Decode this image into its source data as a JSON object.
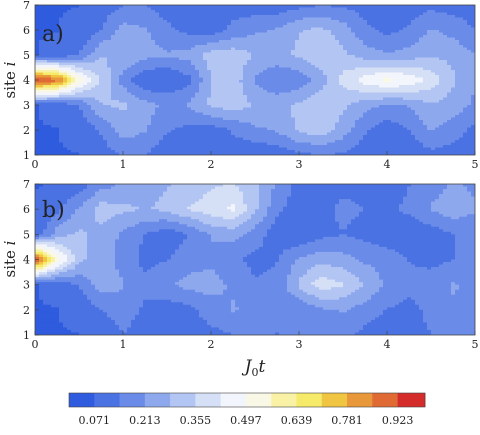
{
  "chart_data": [
    {
      "type": "heatmap",
      "panel_label": "a)",
      "xlim": [
        0,
        5
      ],
      "ylim": [
        1,
        7
      ],
      "x_ticks": [
        "0",
        "1",
        "2",
        "3",
        "4",
        "5"
      ],
      "y_ticks": [
        "1",
        "2",
        "3",
        "4",
        "5",
        "6",
        "7"
      ],
      "ylabel": "site i",
      "xlabel": "",
      "x": [
        0,
        0.25,
        0.5,
        0.75,
        1,
        1.25,
        1.5,
        1.75,
        2,
        2.25,
        2.5,
        2.75,
        3,
        3.25,
        3.5,
        3.75,
        4,
        4.25,
        4.5,
        4.75,
        5
      ],
      "y": [
        1,
        2,
        3,
        4,
        5,
        6,
        7
      ],
      "z": [
        [
          0.07,
          0.07,
          0.07,
          0.1,
          0.15,
          0.14,
          0.09,
          0.08,
          0.09,
          0.1,
          0.08,
          0.09,
          0.12,
          0.14,
          0.13,
          0.1,
          0.08,
          0.09,
          0.12,
          0.11,
          0.09
        ],
        [
          0.07,
          0.07,
          0.08,
          0.15,
          0.25,
          0.22,
          0.15,
          0.12,
          0.1,
          0.15,
          0.2,
          0.22,
          0.3,
          0.33,
          0.25,
          0.15,
          0.1,
          0.14,
          0.22,
          0.18,
          0.12
        ],
        [
          0.07,
          0.08,
          0.14,
          0.28,
          0.3,
          0.24,
          0.2,
          0.22,
          0.3,
          0.32,
          0.28,
          0.26,
          0.3,
          0.34,
          0.3,
          0.24,
          0.2,
          0.22,
          0.28,
          0.25,
          0.2
        ],
        [
          0.95,
          0.88,
          0.55,
          0.35,
          0.18,
          0.07,
          0.07,
          0.12,
          0.28,
          0.33,
          0.2,
          0.15,
          0.16,
          0.25,
          0.38,
          0.46,
          0.52,
          0.48,
          0.4,
          0.3,
          0.22
        ],
        [
          0.07,
          0.08,
          0.14,
          0.28,
          0.28,
          0.24,
          0.22,
          0.24,
          0.32,
          0.33,
          0.28,
          0.26,
          0.3,
          0.34,
          0.3,
          0.25,
          0.22,
          0.24,
          0.28,
          0.26,
          0.22
        ],
        [
          0.07,
          0.07,
          0.08,
          0.14,
          0.24,
          0.22,
          0.16,
          0.12,
          0.1,
          0.16,
          0.2,
          0.22,
          0.28,
          0.3,
          0.25,
          0.16,
          0.12,
          0.15,
          0.22,
          0.19,
          0.14
        ],
        [
          0.07,
          0.07,
          0.07,
          0.1,
          0.14,
          0.14,
          0.1,
          0.09,
          0.1,
          0.11,
          0.1,
          0.1,
          0.12,
          0.14,
          0.13,
          0.11,
          0.1,
          0.1,
          0.12,
          0.11,
          0.1
        ]
      ]
    },
    {
      "type": "heatmap",
      "panel_label": "b)",
      "xlim": [
        0,
        5
      ],
      "ylim": [
        1,
        7
      ],
      "x_ticks": [
        "0",
        "1",
        "2",
        "3",
        "4",
        "5"
      ],
      "y_ticks": [
        "1",
        "2",
        "3",
        "4",
        "5",
        "6",
        "7"
      ],
      "ylabel": "site i",
      "xlabel": "J0t",
      "x": [
        0,
        0.25,
        0.5,
        0.75,
        1,
        1.25,
        1.5,
        1.75,
        2,
        2.25,
        2.5,
        2.75,
        3,
        3.25,
        3.5,
        3.75,
        4,
        4.25,
        4.5,
        4.75,
        5
      ],
      "y": [
        1,
        2,
        3,
        4,
        5,
        6,
        7
      ],
      "z": [
        [
          0.07,
          0.07,
          0.07,
          0.09,
          0.14,
          0.1,
          0.08,
          0.1,
          0.12,
          0.14,
          0.15,
          0.14,
          0.15,
          0.18,
          0.16,
          0.12,
          0.1,
          0.12,
          0.14,
          0.15,
          0.14
        ],
        [
          0.07,
          0.07,
          0.08,
          0.14,
          0.18,
          0.13,
          0.1,
          0.12,
          0.18,
          0.22,
          0.2,
          0.16,
          0.15,
          0.2,
          0.22,
          0.18,
          0.14,
          0.12,
          0.16,
          0.2,
          0.18
        ],
        [
          0.07,
          0.08,
          0.15,
          0.25,
          0.22,
          0.16,
          0.2,
          0.24,
          0.24,
          0.2,
          0.15,
          0.16,
          0.3,
          0.4,
          0.36,
          0.28,
          0.2,
          0.16,
          0.18,
          0.22,
          0.2
        ],
        [
          0.95,
          0.55,
          0.3,
          0.26,
          0.18,
          0.12,
          0.14,
          0.18,
          0.2,
          0.16,
          0.12,
          0.14,
          0.22,
          0.26,
          0.24,
          0.2,
          0.18,
          0.14,
          0.12,
          0.14,
          0.16
        ],
        [
          0.07,
          0.25,
          0.3,
          0.26,
          0.2,
          0.14,
          0.1,
          0.14,
          0.22,
          0.24,
          0.18,
          0.1,
          0.08,
          0.12,
          0.14,
          0.12,
          0.1,
          0.08,
          0.1,
          0.14,
          0.16
        ],
        [
          0.07,
          0.12,
          0.22,
          0.32,
          0.3,
          0.28,
          0.3,
          0.36,
          0.4,
          0.44,
          0.3,
          0.16,
          0.1,
          0.12,
          0.16,
          0.14,
          0.12,
          0.16,
          0.22,
          0.26,
          0.22
        ],
        [
          0.07,
          0.07,
          0.1,
          0.18,
          0.22,
          0.25,
          0.28,
          0.3,
          0.34,
          0.36,
          0.3,
          0.2,
          0.12,
          0.1,
          0.12,
          0.12,
          0.1,
          0.14,
          0.18,
          0.22,
          0.2
        ]
      ]
    }
  ],
  "colorbar": {
    "levels": [
      0,
      0.071,
      0.142,
      0.213,
      0.284,
      0.355,
      0.426,
      0.497,
      0.568,
      0.639,
      0.71,
      0.781,
      0.852,
      0.923,
      1.0
    ],
    "colors": [
      "#2f5bde",
      "#4a72e2",
      "#6a8ce8",
      "#8ea8ee",
      "#b3c5f2",
      "#d5e0f6",
      "#f2f5fb",
      "#f9f7e6",
      "#f9f2a6",
      "#f5ea6a",
      "#f0c542",
      "#e8983a",
      "#e06a33",
      "#d42b2b"
    ],
    "tick_labels": [
      "0.071",
      "0.213",
      "0.355",
      "0.497",
      "0.639",
      "0.781",
      "0.923"
    ],
    "tick_values": [
      0.071,
      0.213,
      0.355,
      0.497,
      0.639,
      0.781,
      0.923
    ]
  }
}
